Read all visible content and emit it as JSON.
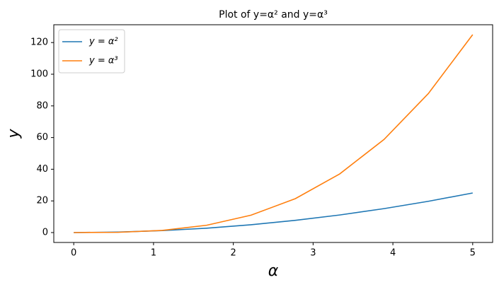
{
  "chart_data": {
    "type": "line",
    "title": "Plot of y=α² and y=α³",
    "x_label": "α",
    "y_label": "y",
    "x": [
      0,
      0.5556,
      1.1111,
      1.6667,
      2.2222,
      2.7778,
      3.3333,
      3.8889,
      4.4444,
      5
    ],
    "series": [
      {
        "name": "y = α²",
        "color": "#1f77b4",
        "values": [
          0,
          0.3086,
          1.2346,
          2.7778,
          4.9383,
          7.716,
          11.1111,
          15.1235,
          19.7531,
          25
        ]
      },
      {
        "name": "y = α³",
        "color": "#ff7f0e",
        "values": [
          0,
          0.1715,
          1.3717,
          4.6296,
          10.9739,
          21.4335,
          37.037,
          58.8134,
          87.7915,
          125
        ]
      }
    ],
    "xlim": [
      -0.25,
      5.25
    ],
    "xticks": [
      0,
      1,
      2,
      3,
      4,
      5
    ],
    "ylim": [
      -6.25,
      131.25
    ],
    "yticks": [
      0,
      20,
      40,
      60,
      80,
      100,
      120
    ],
    "grid": false,
    "legend": "upper-left"
  }
}
